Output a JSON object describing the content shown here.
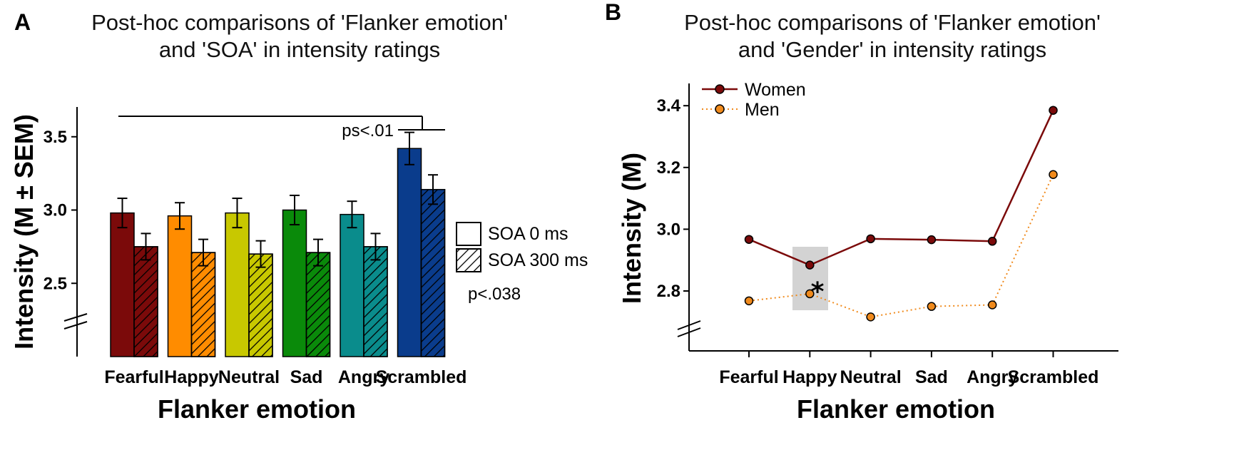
{
  "chart_data": [
    {
      "panel": "A",
      "type": "bar",
      "title": [
        "Post-hoc comparisons of 'Flanker emotion'",
        "and 'SOA' in intensity ratings"
      ],
      "xlabel": "Flanker emotion",
      "ylabel": "Intensity (M ± SEM)",
      "ylim": [
        2.0,
        3.7
      ],
      "yticks": [
        "2.5",
        "3.0",
        "3.5"
      ],
      "categories": [
        "Fearful",
        "Happy",
        "Neutral",
        "Sad",
        "Angry",
        "Scrambled"
      ],
      "colors": [
        "#7b0a0a",
        "#ff8c00",
        "#c8c800",
        "#0a8a0a",
        "#0a8c8c",
        "#0a3c8c"
      ],
      "series": [
        {
          "name": "SOA 0 ms",
          "pattern": "solid",
          "values": [
            2.98,
            2.96,
            2.98,
            3.0,
            2.97,
            3.42
          ],
          "sem": [
            0.1,
            0.09,
            0.1,
            0.1,
            0.09,
            0.11
          ]
        },
        {
          "name": "SOA 300 ms",
          "pattern": "hatched",
          "values": [
            2.75,
            2.71,
            2.7,
            2.71,
            2.75,
            3.14
          ],
          "sem": [
            0.09,
            0.09,
            0.09,
            0.09,
            0.09,
            0.1
          ]
        }
      ],
      "annotations": {
        "bracket": "ps<.01",
        "soa_p": "p<.038"
      }
    },
    {
      "panel": "B",
      "type": "line",
      "title": [
        "Post-hoc comparisons of 'Flanker emotion'",
        "and 'Gender' in intensity ratings"
      ],
      "xlabel": "Flanker emotion",
      "ylabel": "Intensity (M)",
      "ylim": [
        2.6,
        3.48
      ],
      "yticks": [
        "2.8",
        "3.0",
        "3.2",
        "3.4"
      ],
      "categories": [
        "Fearful",
        "Happy",
        "Neutral",
        "Sad",
        "Angry",
        "Scrambled"
      ],
      "series": [
        {
          "name": "Women",
          "color": "#7b0a0a",
          "style": "solid",
          "values": [
            2.967,
            2.884,
            2.969,
            2.966,
            2.961,
            3.385
          ]
        },
        {
          "name": "Men",
          "color": "#f08a1c",
          "style": "dotted",
          "values": [
            2.768,
            2.791,
            2.716,
            2.75,
            2.755,
            3.177
          ]
        }
      ],
      "annotations": {
        "significance": "*",
        "highlight_category": "Happy"
      }
    }
  ]
}
